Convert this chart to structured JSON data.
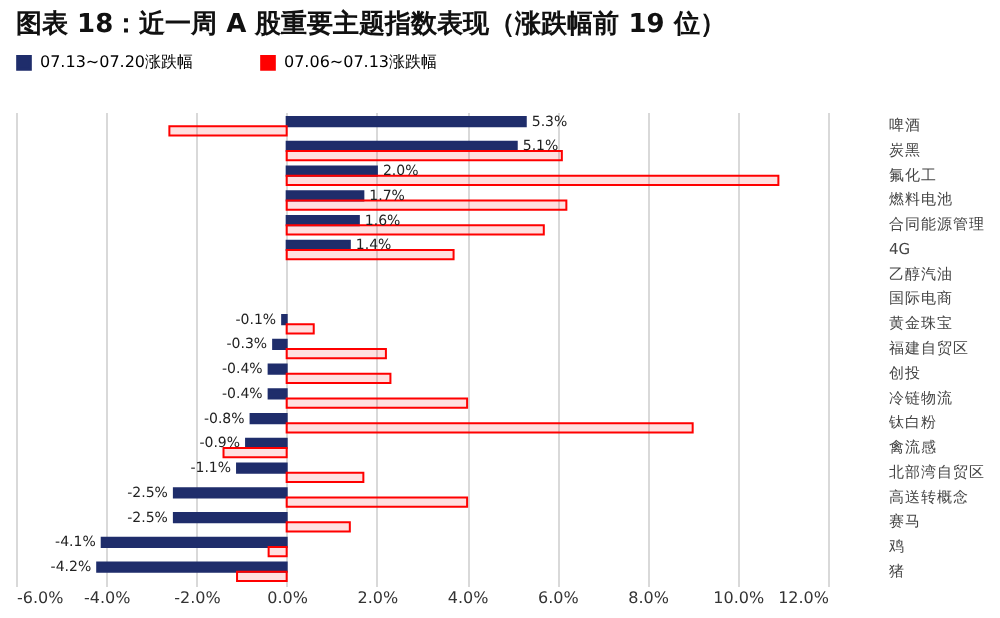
{
  "chart_data": {
    "type": "bar",
    "orientation": "horizontal",
    "title": "图表 18：近一周 A 股重要主题指数表现（涨跌幅前 19 位）",
    "categories": [
      "啤酒",
      "炭黑",
      "氟化工",
      "燃料电池",
      "合同能源管理",
      "4G",
      "乙醇汽油",
      "国际电商",
      "黄金珠宝",
      "福建自贸区",
      "创投",
      "冷链物流",
      "钛白粉",
      "禽流感",
      "北部湾自贸区",
      "高送转概念",
      "赛马",
      "鸡",
      "猪"
    ],
    "series": [
      {
        "name": "07.13~07.20涨跌幅",
        "color": "#1f2d6b",
        "values": [
          5.3,
          5.1,
          2.0,
          1.7,
          1.6,
          1.4,
          null,
          null,
          -0.1,
          -0.3,
          -0.4,
          -0.4,
          -0.8,
          -0.9,
          -1.1,
          -2.5,
          -2.5,
          -4.1,
          -4.2
        ],
        "value_labels": [
          "5.3%",
          "5.1%",
          "2.0%",
          "1.7%",
          "1.6%",
          "1.4%",
          null,
          null,
          "-0.1%",
          "-0.3%",
          "-0.4%",
          "-0.4%",
          "-0.8%",
          "-0.9%",
          "-1.1%",
          "-2.5%",
          "-2.5%",
          "-4.1%",
          "-4.2%"
        ]
      },
      {
        "name": "07.06~07.13涨跌幅",
        "color": "#ff0000",
        "values": [
          -2.6,
          6.1,
          10.9,
          6.2,
          5.7,
          3.7,
          null,
          null,
          0.6,
          2.2,
          2.3,
          4.0,
          9.0,
          -1.4,
          1.7,
          4.0,
          1.4,
          -0.4,
          -1.1
        ]
      }
    ],
    "xlim": [
      -6,
      12
    ],
    "xticks": [
      {
        "value": -6,
        "label": "-6.0%"
      },
      {
        "value": -4,
        "label": "-4.0%"
      },
      {
        "value": -2,
        "label": "-2.0%"
      },
      {
        "value": 0,
        "label": "0.0%"
      },
      {
        "value": 2,
        "label": "2.0%"
      },
      {
        "value": 4,
        "label": "4.0%"
      },
      {
        "value": 6,
        "label": "6.0%"
      },
      {
        "value": 8,
        "label": "8.0%"
      },
      {
        "value": 10,
        "label": "10.0%"
      },
      {
        "value": 12,
        "label": "12.0%"
      }
    ],
    "grid": "x",
    "legend": "top"
  }
}
